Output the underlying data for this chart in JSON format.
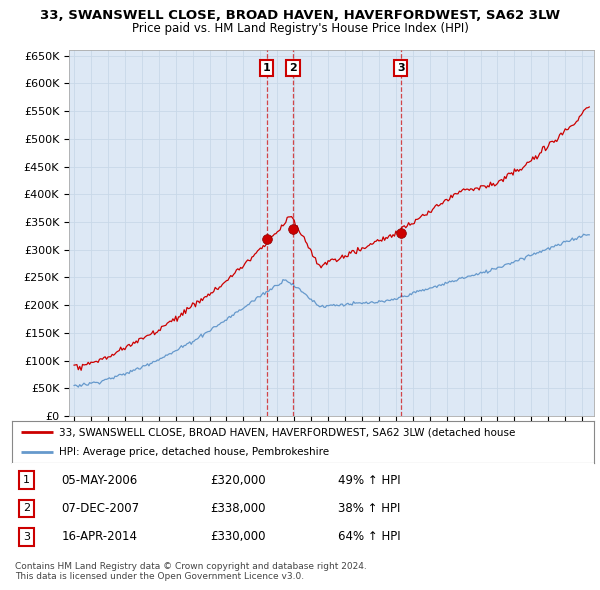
{
  "title": "33, SWANSWELL CLOSE, BROAD HAVEN, HAVERFORDWEST, SA62 3LW",
  "subtitle": "Price paid vs. HM Land Registry's House Price Index (HPI)",
  "ylim": [
    0,
    660000
  ],
  "yticks": [
    0,
    50000,
    100000,
    150000,
    200000,
    250000,
    300000,
    350000,
    400000,
    450000,
    500000,
    550000,
    600000,
    650000
  ],
  "ytick_labels": [
    "£0",
    "£50K",
    "£100K",
    "£150K",
    "£200K",
    "£250K",
    "£300K",
    "£350K",
    "£400K",
    "£450K",
    "£500K",
    "£550K",
    "£600K",
    "£650K"
  ],
  "sale_dates": [
    2006.37,
    2007.92,
    2014.29
  ],
  "sale_prices": [
    320000,
    338000,
    330000
  ],
  "sale_labels": [
    "1",
    "2",
    "3"
  ],
  "red_line_color": "#cc0000",
  "blue_line_color": "#6699cc",
  "vline_color": "#cc0000",
  "plot_bg_color": "#dde8f5",
  "legend_line1": "33, SWANSWELL CLOSE, BROAD HAVEN, HAVERFORDWEST, SA62 3LW (detached house",
  "legend_line2": "HPI: Average price, detached house, Pembrokeshire",
  "table_entries": [
    {
      "num": "1",
      "date": "05-MAY-2006",
      "price": "£320,000",
      "change": "49% ↑ HPI"
    },
    {
      "num": "2",
      "date": "07-DEC-2007",
      "price": "£338,000",
      "change": "38% ↑ HPI"
    },
    {
      "num": "3",
      "date": "16-APR-2014",
      "price": "£330,000",
      "change": "64% ↑ HPI"
    }
  ],
  "footer": "Contains HM Land Registry data © Crown copyright and database right 2024.\nThis data is licensed under the Open Government Licence v3.0.",
  "background_color": "#ffffff",
  "grid_color": "#c8d8e8"
}
